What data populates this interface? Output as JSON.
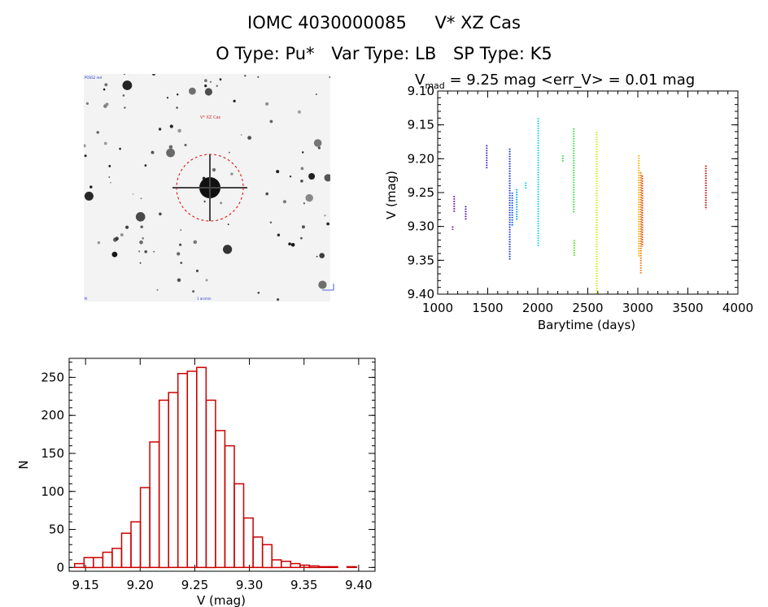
{
  "header": {
    "id_label": "IOMC 4030000085",
    "star_name": "V* XZ Cas",
    "otype": "O Type: Pu*",
    "vartype": "Var Type: LB",
    "sptype": "SP Type: K5"
  },
  "image_panel": {
    "marker_label": "V* XZ Cas",
    "corner_tl": "POSS2 red",
    "corner_bl": "N",
    "corner_bc": "1 arcmin",
    "colors": {
      "circle": "#dd0000",
      "text": "#2233cc"
    }
  },
  "chart_data": [
    {
      "type": "scatter",
      "title_prefix": "V",
      "title_subscript": "mad",
      "title_rest": " = 9.25 mag <err_V> = 0.01 mag",
      "xlabel": "Barytime (days)",
      "ylabel": "V (mag)",
      "xlim": [
        1000,
        4000
      ],
      "ylim": [
        9.4,
        9.1
      ],
      "y_inverted": true,
      "xticks": [
        "1000",
        "1500",
        "2000",
        "2500",
        "3000",
        "3500",
        "4000"
      ],
      "yticks": [
        "9.10",
        "9.15",
        "9.20",
        "9.25",
        "9.30",
        "9.35",
        "9.40"
      ],
      "groups": [
        {
          "x": 1150,
          "y_min": 9.3,
          "y_max": 9.305,
          "color": "#7a0080"
        },
        {
          "x": 1165,
          "y_min": 9.255,
          "y_max": 9.28,
          "color": "#6a00a0"
        },
        {
          "x": 1280,
          "y_min": 9.27,
          "y_max": 9.29,
          "color": "#4a10b0"
        },
        {
          "x": 1490,
          "y_min": 9.18,
          "y_max": 9.215,
          "color": "#3020c0"
        },
        {
          "x": 1720,
          "y_min": 9.185,
          "y_max": 9.35,
          "color": "#1030d0"
        },
        {
          "x": 1745,
          "y_min": 9.25,
          "y_max": 9.3,
          "color": "#0050e0"
        },
        {
          "x": 1790,
          "y_min": 9.245,
          "y_max": 9.29,
          "color": "#00a0e0"
        },
        {
          "x": 1880,
          "y_min": 9.235,
          "y_max": 9.245,
          "color": "#00c8d8"
        },
        {
          "x": 2005,
          "y_min": 9.14,
          "y_max": 9.33,
          "color": "#00d8c8"
        },
        {
          "x": 2250,
          "y_min": 9.195,
          "y_max": 9.205,
          "color": "#20e040"
        },
        {
          "x": 2360,
          "y_min": 9.155,
          "y_max": 9.28,
          "color": "#30e030"
        },
        {
          "x": 2365,
          "y_min": 9.32,
          "y_max": 9.345,
          "color": "#40e020"
        },
        {
          "x": 2590,
          "y_min": 9.16,
          "y_max": 9.4,
          "color": "#c0f000"
        },
        {
          "x": 3010,
          "y_min": 9.195,
          "y_max": 9.345,
          "color": "#f0b000"
        },
        {
          "x": 3030,
          "y_min": 9.22,
          "y_max": 9.37,
          "color": "#f07000"
        },
        {
          "x": 3045,
          "y_min": 9.225,
          "y_max": 9.33,
          "color": "#e03000"
        },
        {
          "x": 3680,
          "y_min": 9.21,
          "y_max": 9.275,
          "color": "#cc0000"
        }
      ]
    },
    {
      "type": "bar",
      "xlabel": "V (mag)",
      "ylabel": "N",
      "xlim": [
        9.135,
        9.415
      ],
      "ylim": [
        -5,
        275
      ],
      "xticks": [
        "9.15",
        "9.20",
        "9.25",
        "9.30",
        "9.35",
        "9.40"
      ],
      "yticks": [
        "0",
        "50",
        "100",
        "150",
        "200",
        "250"
      ],
      "bin_start": 9.14,
      "bin_width": 0.0086,
      "values": [
        5,
        13,
        13,
        20,
        25,
        45,
        60,
        105,
        165,
        220,
        230,
        255,
        258,
        263,
        220,
        180,
        160,
        110,
        65,
        40,
        30,
        10,
        8,
        5,
        3,
        2,
        1,
        1,
        0,
        1
      ],
      "color": "#cc0000"
    }
  ]
}
